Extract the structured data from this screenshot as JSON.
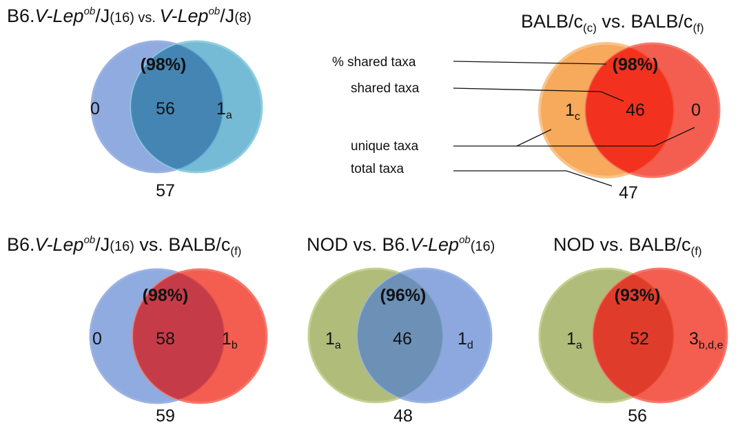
{
  "diagrams": [
    {
      "title": {
        "a": "B6.",
        "b": "V-Lep",
        "c": "ob",
        "d": "/J",
        "e": "(16)",
        "f": " vs. ",
        "g": "V-Lep",
        "h": "ob",
        "i": "/J",
        "j": "(8)"
      },
      "percent": "(98%)",
      "left": {
        "value": "0",
        "sub": ""
      },
      "shared": "56",
      "right": {
        "value": "1",
        "sub": "a"
      },
      "total": "57",
      "left_color": "#7f9fdc",
      "right_color": "#4ea8c9"
    },
    {
      "title": {
        "a": "BALB/c",
        "b": "(c)",
        "c": "  vs.  BALB/c",
        "d": "(f)"
      },
      "percent": "(98%)",
      "left": {
        "value": "1",
        "sub": "c"
      },
      "shared": "46",
      "right": {
        "value": "0",
        "sub": ""
      },
      "total": "47",
      "left_color": "#f6a04a",
      "right_color": "#f23a2a"
    },
    {
      "title": {
        "a": "B6.",
        "b": "V-Lep",
        "c": "ob",
        "d": "/J",
        "e": "(16)",
        "f": " vs. BALB/c",
        "g": "(f)"
      },
      "percent": "(98%)",
      "left": {
        "value": "0",
        "sub": ""
      },
      "shared": "58",
      "right": {
        "value": "1",
        "sub": "b"
      },
      "total": "59",
      "left_color": "#7f9fdc",
      "right_color": "#f23a2a"
    },
    {
      "title": {
        "a": "NOD  vs. B6.",
        "b": "V-Lep",
        "c": "ob",
        "d": "(16)"
      },
      "percent": "(96%)",
      "left": {
        "value": "1",
        "sub": "a"
      },
      "shared": "46",
      "right": {
        "value": "1",
        "sub": "d"
      },
      "total": "48",
      "left_color": "#a7b56c",
      "right_color": "#7f9fdc"
    },
    {
      "title": {
        "a": "NOD vs. BALB/c",
        "b": "(f)"
      },
      "percent": "(93%)",
      "left": {
        "value": "1",
        "sub": "a"
      },
      "shared": "52",
      "right": {
        "value": "3",
        "sub": "b,d,e"
      },
      "total": "56",
      "left_color": "#a7b56c",
      "right_color": "#f23a2a"
    }
  ],
  "legend": {
    "percent_shared": "% shared taxa",
    "shared": "shared taxa",
    "unique": "unique taxa",
    "total": "total taxa"
  }
}
